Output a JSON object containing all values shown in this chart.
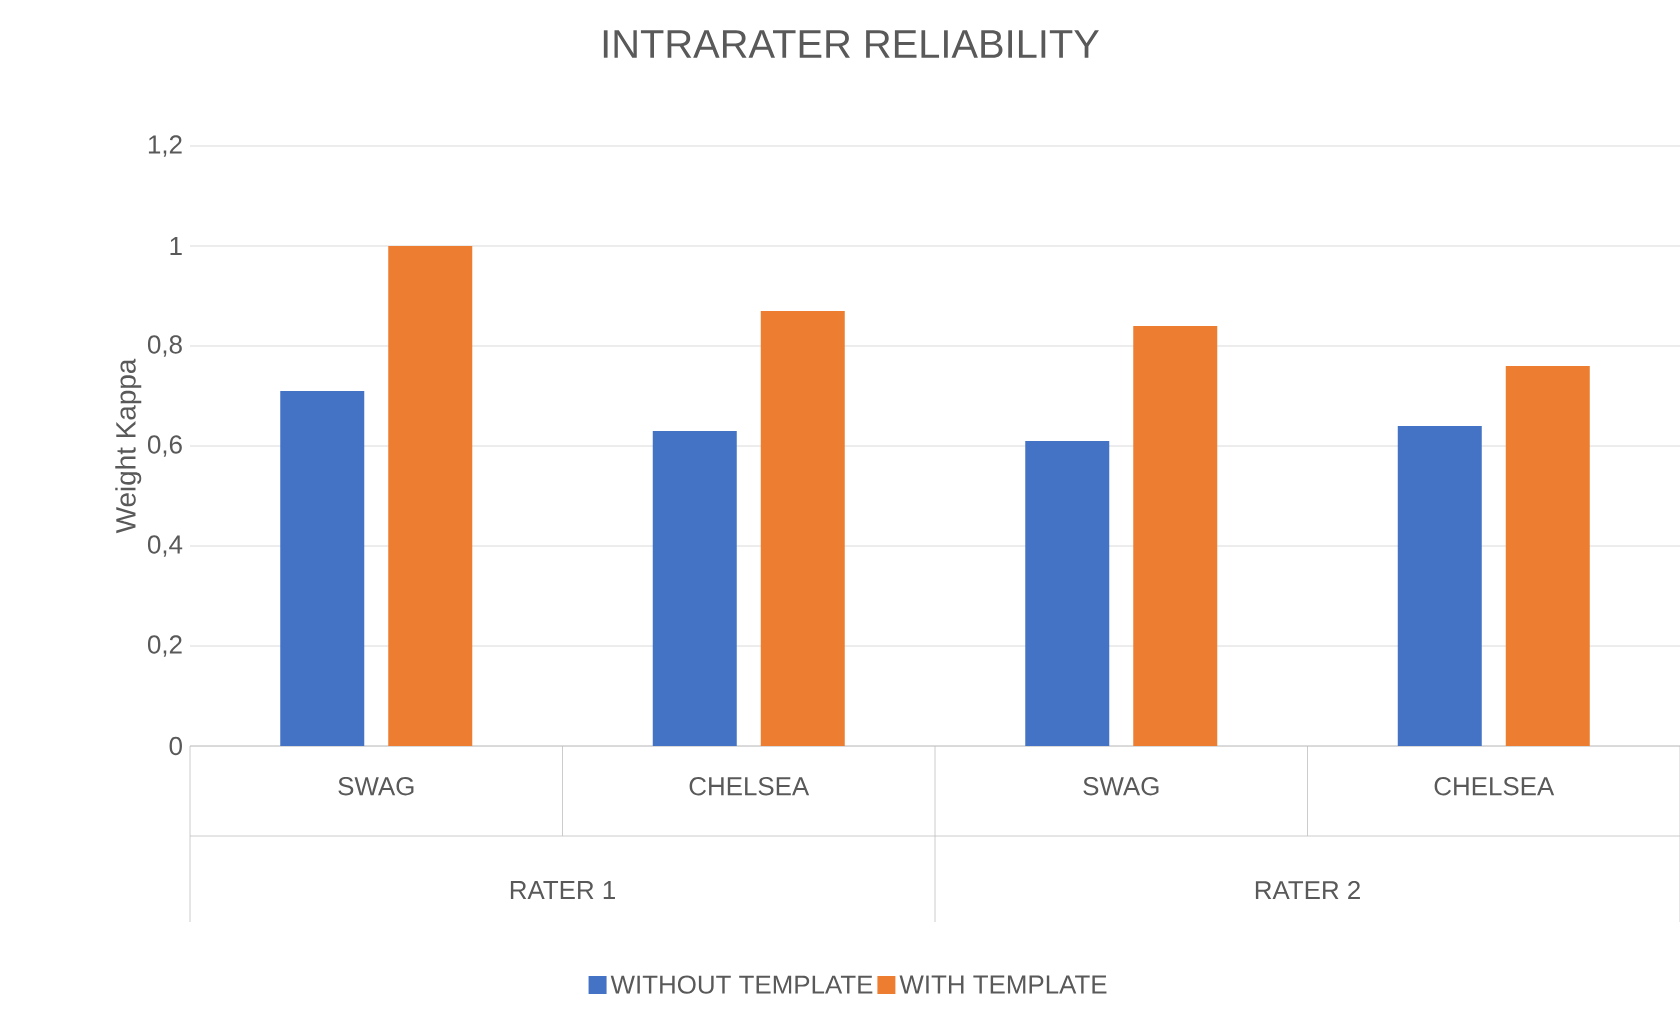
{
  "chart_data": {
    "type": "bar",
    "title": "INTRARATER RELIABILITY",
    "ylabel": "Weight Kappa",
    "categories": [
      "SWAG",
      "CHELSEA",
      "SWAG",
      "CHELSEA"
    ],
    "annotations": [
      "RATER 1",
      "RATER 2"
    ],
    "series": [
      {
        "name": "WITHOUT TEMPLATE",
        "color": "#4472c4",
        "values": [
          0.71,
          0.63,
          0.61,
          0.64
        ]
      },
      {
        "name": "WITH TEMPLATE",
        "color": "#ed7d31",
        "values": [
          1.0,
          0.87,
          0.84,
          0.76
        ]
      }
    ],
    "ylim": [
      0,
      1.2
    ],
    "yticks": [
      0,
      {
        "value": 0.2,
        "label": "0,2"
      },
      {
        "value": 0.4,
        "label": "0,4"
      },
      {
        "value": 0.6,
        "label": "0,6"
      },
      {
        "value": 0.8,
        "label": "0,8"
      },
      1,
      {
        "value": 1.2,
        "label": "1,2"
      }
    ],
    "grid": "y",
    "legend": "bottom"
  }
}
